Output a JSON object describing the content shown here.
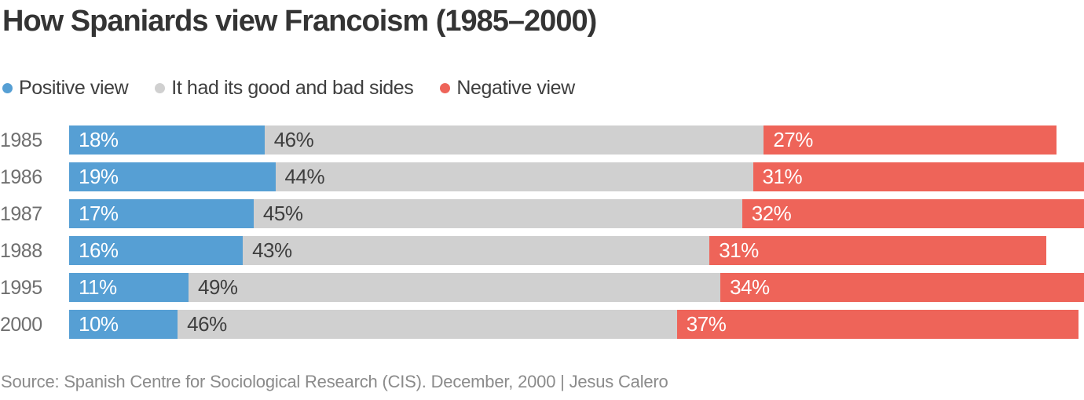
{
  "title": "How Spaniards view Francoism (1985–2000)",
  "source": "Source: Spanish Centre for Sociological Research (CIS). December, 2000 | Jesus Calero",
  "chart_data": {
    "type": "bar",
    "orientation": "horizontal",
    "stacked": true,
    "grid": false,
    "legend_position": "top",
    "value_suffix": "%",
    "xlim": [
      0,
      94
    ],
    "categories": [
      "1985",
      "1986",
      "1987",
      "1988",
      "1995",
      "2000"
    ],
    "series": [
      {
        "name": "Positive view",
        "color": "#569fd4",
        "label_color": "#ffffff",
        "values": [
          18,
          19,
          17,
          16,
          11,
          10
        ]
      },
      {
        "name": "It had its good and bad sides",
        "color": "#d0d0d0",
        "label_color": "#3e3e3e",
        "values": [
          46,
          44,
          45,
          43,
          49,
          46
        ]
      },
      {
        "name": "Negative view",
        "color": "#ee6459",
        "label_color": "#ffffff",
        "values": [
          27,
          31,
          32,
          31,
          34,
          37
        ]
      }
    ]
  }
}
